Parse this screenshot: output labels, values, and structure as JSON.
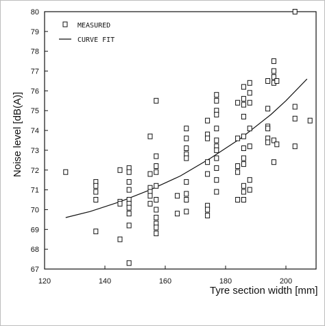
{
  "chart_data": {
    "type": "scatter",
    "title": "",
    "xlabel": "Tyre section width [mm]",
    "ylabel": "Noise level [dB(A)]",
    "xlim": [
      120,
      210
    ],
    "ylim": [
      67,
      80
    ],
    "x_ticks": [
      "120",
      "140",
      "160",
      "180",
      "200"
    ],
    "y_ticks": [
      "67",
      "68",
      "69",
      "70",
      "71",
      "72",
      "73",
      "74",
      "75",
      "76",
      "77",
      "78",
      "79",
      "80"
    ],
    "grid": false,
    "legend_position": "top-left",
    "legend": {
      "measured": "MEASURED",
      "curve_fit": "CURVE FIT"
    },
    "colors": {
      "ink": "#111111",
      "background": "#ffffff",
      "frame": "#bdbdbd"
    },
    "series": [
      {
        "name": "MEASURED",
        "style": "open-square-markers",
        "points": [
          [
            127,
            71.9
          ],
          [
            137,
            71.4
          ],
          [
            137,
            71.2
          ],
          [
            137,
            70.9
          ],
          [
            137,
            70.5
          ],
          [
            137,
            68.9
          ],
          [
            145,
            72.0
          ],
          [
            145,
            70.4
          ],
          [
            145,
            70.3
          ],
          [
            145,
            68.5
          ],
          [
            148,
            72.1
          ],
          [
            148,
            71.9
          ],
          [
            148,
            71.4
          ],
          [
            148,
            71.0
          ],
          [
            148,
            70.5
          ],
          [
            148,
            70.3
          ],
          [
            148,
            70.1
          ],
          [
            148,
            69.8
          ],
          [
            148,
            69.2
          ],
          [
            148,
            67.3
          ],
          [
            155,
            73.7
          ],
          [
            155,
            71.8
          ],
          [
            155,
            71.1
          ],
          [
            155,
            70.9
          ],
          [
            155,
            70.7
          ],
          [
            155,
            70.3
          ],
          [
            157,
            75.5
          ],
          [
            157,
            72.7
          ],
          [
            157,
            72.2
          ],
          [
            157,
            71.9
          ],
          [
            157,
            71.2
          ],
          [
            157,
            70.5
          ],
          [
            157,
            70.0
          ],
          [
            157,
            69.6
          ],
          [
            157,
            69.3
          ],
          [
            157,
            69.1
          ],
          [
            157,
            68.8
          ],
          [
            164,
            70.7
          ],
          [
            164,
            69.8
          ],
          [
            167,
            74.1
          ],
          [
            167,
            73.6
          ],
          [
            167,
            73.1
          ],
          [
            167,
            72.8
          ],
          [
            167,
            72.6
          ],
          [
            167,
            71.4
          ],
          [
            167,
            70.8
          ],
          [
            167,
            70.5
          ],
          [
            167,
            69.9
          ],
          [
            174,
            74.5
          ],
          [
            174,
            73.8
          ],
          [
            174,
            73.6
          ],
          [
            174,
            72.4
          ],
          [
            174,
            71.8
          ],
          [
            174,
            70.2
          ],
          [
            174,
            70.0
          ],
          [
            174,
            69.7
          ],
          [
            177,
            75.8
          ],
          [
            177,
            75.5
          ],
          [
            177,
            75.0
          ],
          [
            177,
            74.8
          ],
          [
            177,
            74.1
          ],
          [
            177,
            73.5
          ],
          [
            177,
            73.2
          ],
          [
            177,
            73.0
          ],
          [
            177,
            72.6
          ],
          [
            177,
            72.1
          ],
          [
            177,
            71.5
          ],
          [
            177,
            70.9
          ],
          [
            184,
            75.4
          ],
          [
            184,
            73.6
          ],
          [
            184,
            72.2
          ],
          [
            184,
            71.9
          ],
          [
            184,
            70.5
          ],
          [
            186,
            76.2
          ],
          [
            186,
            75.6
          ],
          [
            186,
            75.3
          ],
          [
            186,
            74.7
          ],
          [
            186,
            73.7
          ],
          [
            186,
            73.1
          ],
          [
            186,
            72.6
          ],
          [
            186,
            72.3
          ],
          [
            186,
            71.2
          ],
          [
            186,
            70.9
          ],
          [
            186,
            70.5
          ],
          [
            188,
            76.4
          ],
          [
            188,
            75.9
          ],
          [
            188,
            75.4
          ],
          [
            188,
            74.1
          ],
          [
            188,
            73.2
          ],
          [
            188,
            71.5
          ],
          [
            188,
            71.0
          ],
          [
            194,
            76.5
          ],
          [
            194,
            75.1
          ],
          [
            194,
            74.2
          ],
          [
            194,
            74.1
          ],
          [
            194,
            73.6
          ],
          [
            194,
            73.4
          ],
          [
            196,
            77.5
          ],
          [
            196,
            77.0
          ],
          [
            196,
            76.7
          ],
          [
            196,
            76.4
          ],
          [
            196,
            73.5
          ],
          [
            196,
            72.4
          ],
          [
            197,
            76.5
          ],
          [
            197,
            73.3
          ],
          [
            203,
            80.0
          ],
          [
            203,
            75.2
          ],
          [
            203,
            74.6
          ],
          [
            203,
            73.2
          ],
          [
            208,
            74.5
          ]
        ]
      },
      {
        "name": "CURVE FIT",
        "style": "solid-line",
        "points": [
          [
            127,
            69.6
          ],
          [
            135,
            69.9
          ],
          [
            145,
            70.4
          ],
          [
            155,
            71.0
          ],
          [
            165,
            71.7
          ],
          [
            175,
            72.6
          ],
          [
            185,
            73.6
          ],
          [
            195,
            74.8
          ],
          [
            200,
            75.5
          ],
          [
            207,
            76.6
          ]
        ]
      }
    ]
  }
}
